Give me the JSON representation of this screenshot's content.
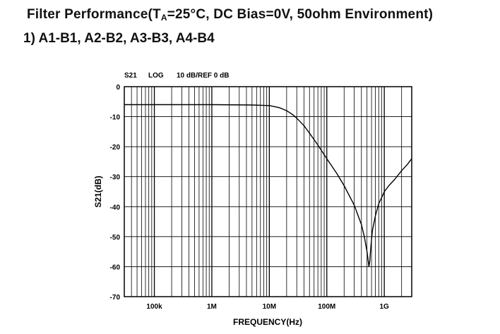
{
  "heading": {
    "prefix": "Filter Performance(T",
    "sub": "A",
    "suffix": "=25°C, DC Bias=0V, 50ohm Environment)",
    "subtitle": "1) A1-B1, A2-B2, A3-B3, A4-B4"
  },
  "chart_data": {
    "type": "line",
    "header": {
      "param": "S21",
      "scale": "LOG",
      "ref": "10 dB/REF 0 dB"
    },
    "xlabel": "FREQUENCY(Hz)",
    "ylabel": "S21(dB)",
    "xscale": "log",
    "xlim": [
      30000,
      3000000000
    ],
    "ylim": [
      -70,
      0
    ],
    "grid": true,
    "yticks": [
      0,
      -10,
      -20,
      -30,
      -40,
      -50,
      -60,
      -70
    ],
    "xticks": [
      {
        "label": "100k",
        "value": 100000
      },
      {
        "label": "1M",
        "value": 1000000
      },
      {
        "label": "10M",
        "value": 10000000
      },
      {
        "label": "100M",
        "value": 100000000
      },
      {
        "label": "1G",
        "value": 1000000000
      }
    ],
    "series": [
      {
        "color": "#000000",
        "points": [
          [
            30000,
            -6.0
          ],
          [
            1000000,
            -6.0
          ],
          [
            5000000,
            -6.1
          ],
          [
            10000000,
            -6.3
          ],
          [
            15000000,
            -7.0
          ],
          [
            20000000,
            -8.0
          ],
          [
            25000000,
            -9.2
          ],
          [
            30000000,
            -10.5
          ],
          [
            40000000,
            -13.0
          ],
          [
            50000000,
            -15.5
          ],
          [
            70000000,
            -19.5
          ],
          [
            100000000,
            -24.0
          ],
          [
            150000000,
            -29.0
          ],
          [
            200000000,
            -33.0
          ],
          [
            300000000,
            -39.5
          ],
          [
            400000000,
            -46.0
          ],
          [
            450000000,
            -50.0
          ],
          [
            500000000,
            -55.0
          ],
          [
            540000000,
            -60.0
          ],
          [
            560000000,
            -58.0
          ],
          [
            580000000,
            -54.0
          ],
          [
            620000000,
            -48.0
          ],
          [
            700000000,
            -43.0
          ],
          [
            800000000,
            -39.0
          ],
          [
            900000000,
            -37.0
          ],
          [
            1000000000,
            -35.0
          ],
          [
            1200000000,
            -33.0
          ],
          [
            1500000000,
            -31.0
          ],
          [
            2000000000,
            -28.0
          ],
          [
            2500000000,
            -26.0
          ],
          [
            3000000000,
            -24.0
          ]
        ]
      }
    ]
  }
}
